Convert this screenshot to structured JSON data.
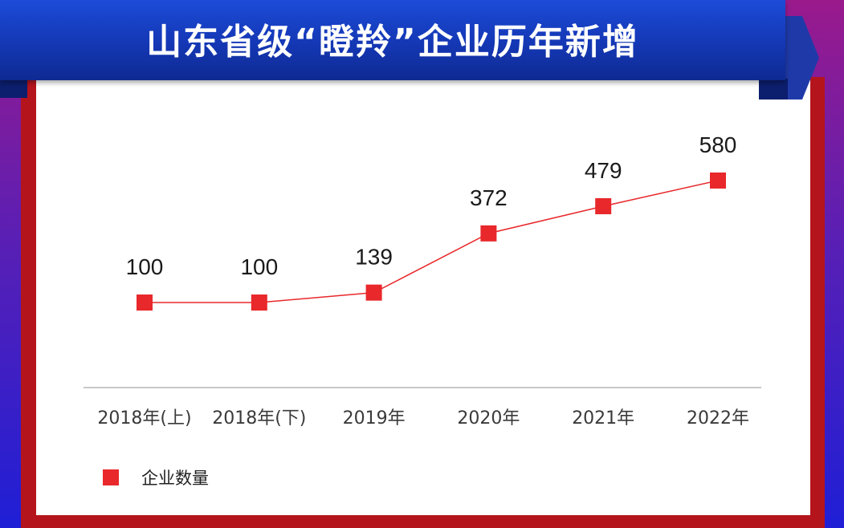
{
  "header": {
    "title": "山东省级“瞪羚”企业历年新增"
  },
  "colors": {
    "series": "#e8282b",
    "axis": "#c8c8c8",
    "frame": "#b4141c",
    "banner": "#1437b4"
  },
  "chart_data": {
    "type": "line",
    "title": "山东省级“瞪羚”企业历年新增",
    "categories": [
      "2018年(上)",
      "2018年(下)",
      "2019年",
      "2020年",
      "2021年",
      "2022年"
    ],
    "series": [
      {
        "name": "企业数量",
        "values": [
          100,
          100,
          139,
          372,
          479,
          580
        ],
        "color": "#e8282b"
      }
    ],
    "legend": "bottom-left",
    "grid": false,
    "xlabel": "",
    "ylabel": ""
  }
}
